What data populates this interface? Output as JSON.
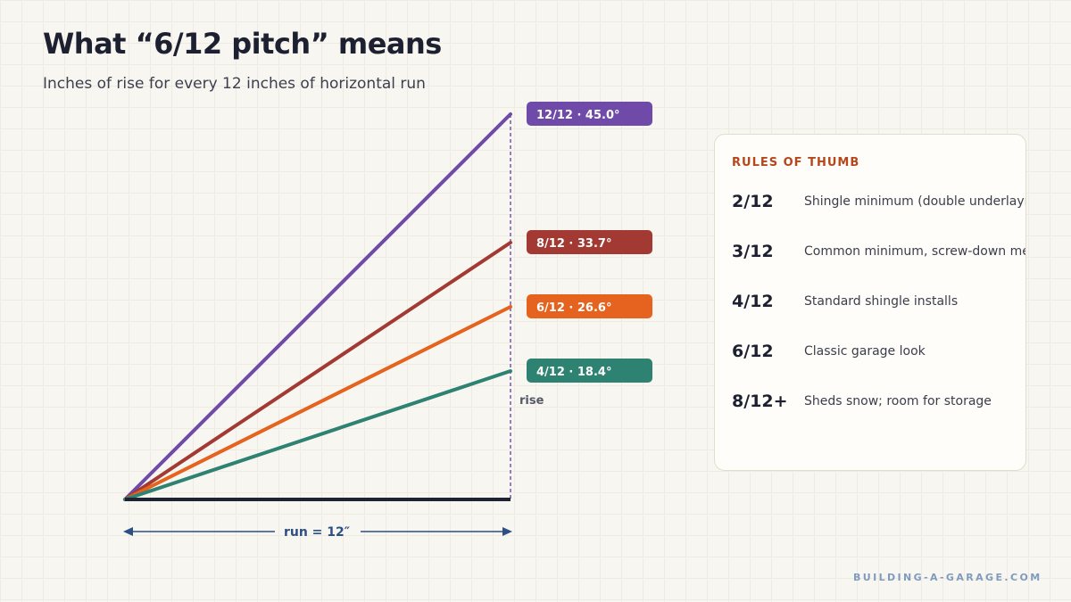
{
  "header": {
    "title": "What “6/12 pitch” means",
    "subtitle": "Inches of rise for every 12 inches of horizontal run"
  },
  "chart_data": {
    "type": "line",
    "run_inches": 12,
    "series": [
      {
        "pitch": "12/12",
        "rise": 12,
        "angle_deg": 45.0,
        "label": "12/12 · 45.0°",
        "color": "#6f4aa8"
      },
      {
        "pitch": "8/12",
        "rise": 8,
        "angle_deg": 33.7,
        "label": "8/12 · 33.7°",
        "color": "#a23a33"
      },
      {
        "pitch": "6/12",
        "rise": 6,
        "angle_deg": 26.6,
        "label": "6/12 · 26.6°",
        "color": "#e5621f"
      },
      {
        "pitch": "4/12",
        "rise": 4,
        "angle_deg": 18.4,
        "label": "4/12 · 18.4°",
        "color": "#2e8271"
      }
    ],
    "rise_label": "rise",
    "run_label": "run = 12″",
    "base_color": "#1f2230",
    "run_arrow_color": "#2c4f86",
    "rise_line_color": "#6f4aa8"
  },
  "rules": {
    "heading": "RULES OF THUMB",
    "items": [
      {
        "pitch": "2/12",
        "desc": "Shingle minimum (double underlayment)"
      },
      {
        "pitch": "3/12",
        "desc": "Common minimum, screw-down metal"
      },
      {
        "pitch": "4/12",
        "desc": "Standard shingle installs"
      },
      {
        "pitch": "6/12",
        "desc": "Classic garage look"
      },
      {
        "pitch": "8/12+",
        "desc": "Sheds snow; room for storage"
      }
    ]
  },
  "footer": {
    "site": "BUILDING-A-GARAGE.COM"
  },
  "colors": {
    "accent_heading": "#b5471c",
    "footer": "#7f9bc0"
  }
}
